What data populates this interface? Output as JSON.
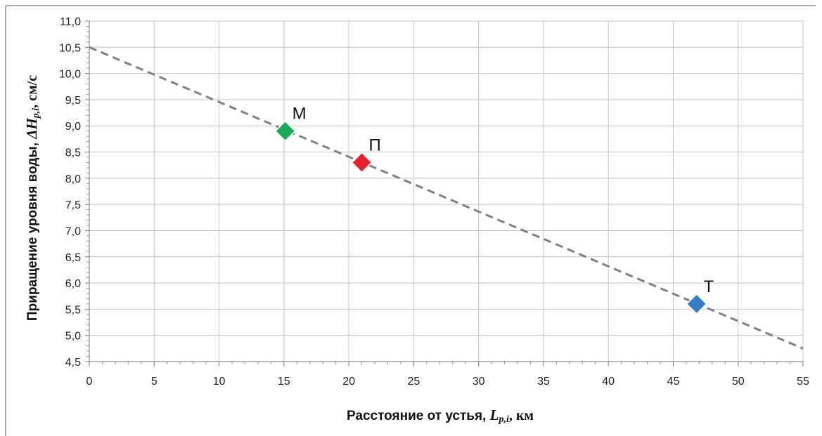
{
  "chart_data": {
    "type": "scatter",
    "xlabel": {
      "text": "Расстояние от устья, ",
      "symbol": "L",
      "subscript": "p,i",
      "unit": ", км"
    },
    "ylabel": {
      "text": "Приращение уровня воды, ",
      "symbol": "ΔH",
      "subscript": "p,i",
      "unit": ", см/с"
    },
    "xlim": [
      0,
      55
    ],
    "ylim": [
      4.5,
      11.0
    ],
    "x_ticks": [
      0,
      5,
      10,
      15,
      20,
      25,
      30,
      35,
      40,
      45,
      50,
      55
    ],
    "x_tick_labels": [
      "0",
      "5",
      "10",
      "15",
      "20",
      "25",
      "30",
      "35",
      "40",
      "45",
      "50",
      "55"
    ],
    "y_ticks": [
      4.5,
      5.0,
      5.5,
      6.0,
      6.5,
      7.0,
      7.5,
      8.0,
      8.5,
      9.0,
      9.5,
      10.0,
      10.5,
      11.0
    ],
    "y_tick_labels": [
      "4,5",
      "5,0",
      "5,5",
      "6,0",
      "6,5",
      "7,0",
      "7,5",
      "8,0",
      "8,5",
      "9,0",
      "9,5",
      "10,0",
      "10,5",
      "11,0"
    ],
    "grid": true,
    "points": [
      {
        "label": "М",
        "x": 15.1,
        "y": 8.9,
        "color": "#1aa85a"
      },
      {
        "label": "П",
        "x": 21.0,
        "y": 8.3,
        "color": "#e8202a"
      },
      {
        "label": "Т",
        "x": 46.8,
        "y": 5.6,
        "color": "#3a7dc4"
      }
    ],
    "trendline": {
      "style": "dashed",
      "color": "#808080",
      "start": {
        "x": 0,
        "y": 10.5
      },
      "end": {
        "x": 55,
        "y": 4.75
      }
    }
  }
}
